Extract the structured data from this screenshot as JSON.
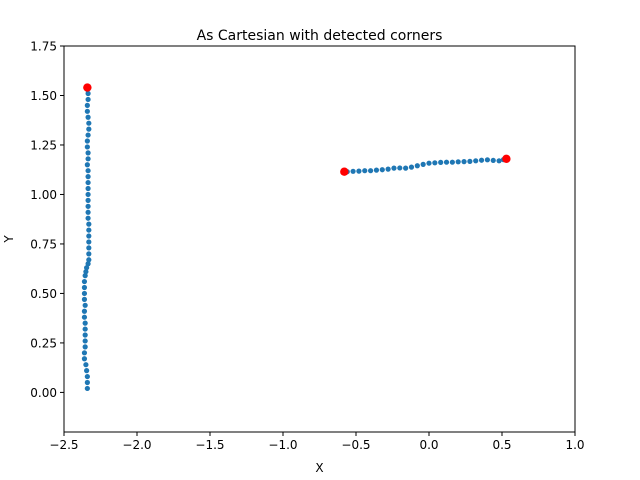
{
  "chart_data": {
    "type": "scatter",
    "title": "As Cartesian with detected corners",
    "xlabel": "X",
    "ylabel": "Y",
    "xlim": [
      -2.5,
      1.0
    ],
    "ylim": [
      -0.2,
      1.75
    ],
    "grid": false,
    "xticks": [
      -2.5,
      -2.0,
      -1.5,
      -1.0,
      -0.5,
      0.0,
      0.5,
      1.0
    ],
    "xtick_labels": [
      "−2.5",
      "−2.0",
      "−1.5",
      "−1.0",
      "−0.5",
      "0.0",
      "0.5",
      "1.0"
    ],
    "yticks": [
      0.0,
      0.25,
      0.5,
      0.75,
      1.0,
      1.25,
      1.5,
      1.75
    ],
    "ytick_labels": [
      "0.00",
      "0.25",
      "0.50",
      "0.75",
      "1.00",
      "1.25",
      "1.50",
      "1.75"
    ],
    "series": [
      {
        "color": "#1f77b4",
        "marker": "circle",
        "points": [
          [
            -2.34,
            0.02
          ],
          [
            -2.34,
            0.05
          ],
          [
            -2.34,
            0.08
          ],
          [
            -2.345,
            0.11
          ],
          [
            -2.35,
            0.14
          ],
          [
            -2.36,
            0.17
          ],
          [
            -2.36,
            0.2
          ],
          [
            -2.355,
            0.23
          ],
          [
            -2.355,
            0.26
          ],
          [
            -2.355,
            0.29
          ],
          [
            -2.355,
            0.32
          ],
          [
            -2.355,
            0.35
          ],
          [
            -2.36,
            0.38
          ],
          [
            -2.36,
            0.41
          ],
          [
            -2.355,
            0.44
          ],
          [
            -2.36,
            0.47
          ],
          [
            -2.36,
            0.5
          ],
          [
            -2.36,
            0.53
          ],
          [
            -2.36,
            0.56
          ],
          [
            -2.355,
            0.59
          ],
          [
            -2.35,
            0.61
          ],
          [
            -2.345,
            0.63
          ],
          [
            -2.335,
            0.65
          ],
          [
            -2.33,
            0.67
          ],
          [
            -2.33,
            0.7
          ],
          [
            -2.33,
            0.73
          ],
          [
            -2.33,
            0.76
          ],
          [
            -2.33,
            0.79
          ],
          [
            -2.33,
            0.82
          ],
          [
            -2.33,
            0.85
          ],
          [
            -2.335,
            0.88
          ],
          [
            -2.335,
            0.91
          ],
          [
            -2.335,
            0.94
          ],
          [
            -2.335,
            0.97
          ],
          [
            -2.335,
            1.0
          ],
          [
            -2.335,
            1.03
          ],
          [
            -2.335,
            1.06
          ],
          [
            -2.335,
            1.09
          ],
          [
            -2.335,
            1.12
          ],
          [
            -2.34,
            1.15
          ],
          [
            -2.335,
            1.18
          ],
          [
            -2.335,
            1.21
          ],
          [
            -2.34,
            1.24
          ],
          [
            -2.34,
            1.27
          ],
          [
            -2.335,
            1.3
          ],
          [
            -2.33,
            1.33
          ],
          [
            -2.33,
            1.36
          ],
          [
            -2.335,
            1.39
          ],
          [
            -2.34,
            1.42
          ],
          [
            -2.34,
            1.45
          ],
          [
            -2.335,
            1.48
          ],
          [
            -2.335,
            1.51
          ],
          [
            -2.34,
            1.53
          ],
          [
            -0.56,
            1.115
          ],
          [
            -0.52,
            1.117
          ],
          [
            -0.48,
            1.118
          ],
          [
            -0.44,
            1.12
          ],
          [
            -0.4,
            1.12
          ],
          [
            -0.36,
            1.123
          ],
          [
            -0.32,
            1.125
          ],
          [
            -0.28,
            1.128
          ],
          [
            -0.24,
            1.133
          ],
          [
            -0.2,
            1.134
          ],
          [
            -0.16,
            1.133
          ],
          [
            -0.12,
            1.138
          ],
          [
            -0.08,
            1.145
          ],
          [
            -0.04,
            1.152
          ],
          [
            0.0,
            1.158
          ],
          [
            0.04,
            1.16
          ],
          [
            0.08,
            1.162
          ],
          [
            0.12,
            1.163
          ],
          [
            0.16,
            1.163
          ],
          [
            0.2,
            1.165
          ],
          [
            0.24,
            1.166
          ],
          [
            0.28,
            1.167
          ],
          [
            0.32,
            1.17
          ],
          [
            0.36,
            1.173
          ],
          [
            0.4,
            1.175
          ],
          [
            0.44,
            1.172
          ],
          [
            0.48,
            1.17
          ],
          [
            0.51,
            1.176
          ]
        ]
      },
      {
        "color": "#ff0000",
        "marker": "circle",
        "points": [
          [
            -2.34,
            1.54
          ],
          [
            -0.58,
            1.115
          ],
          [
            0.53,
            1.18
          ]
        ]
      }
    ]
  }
}
